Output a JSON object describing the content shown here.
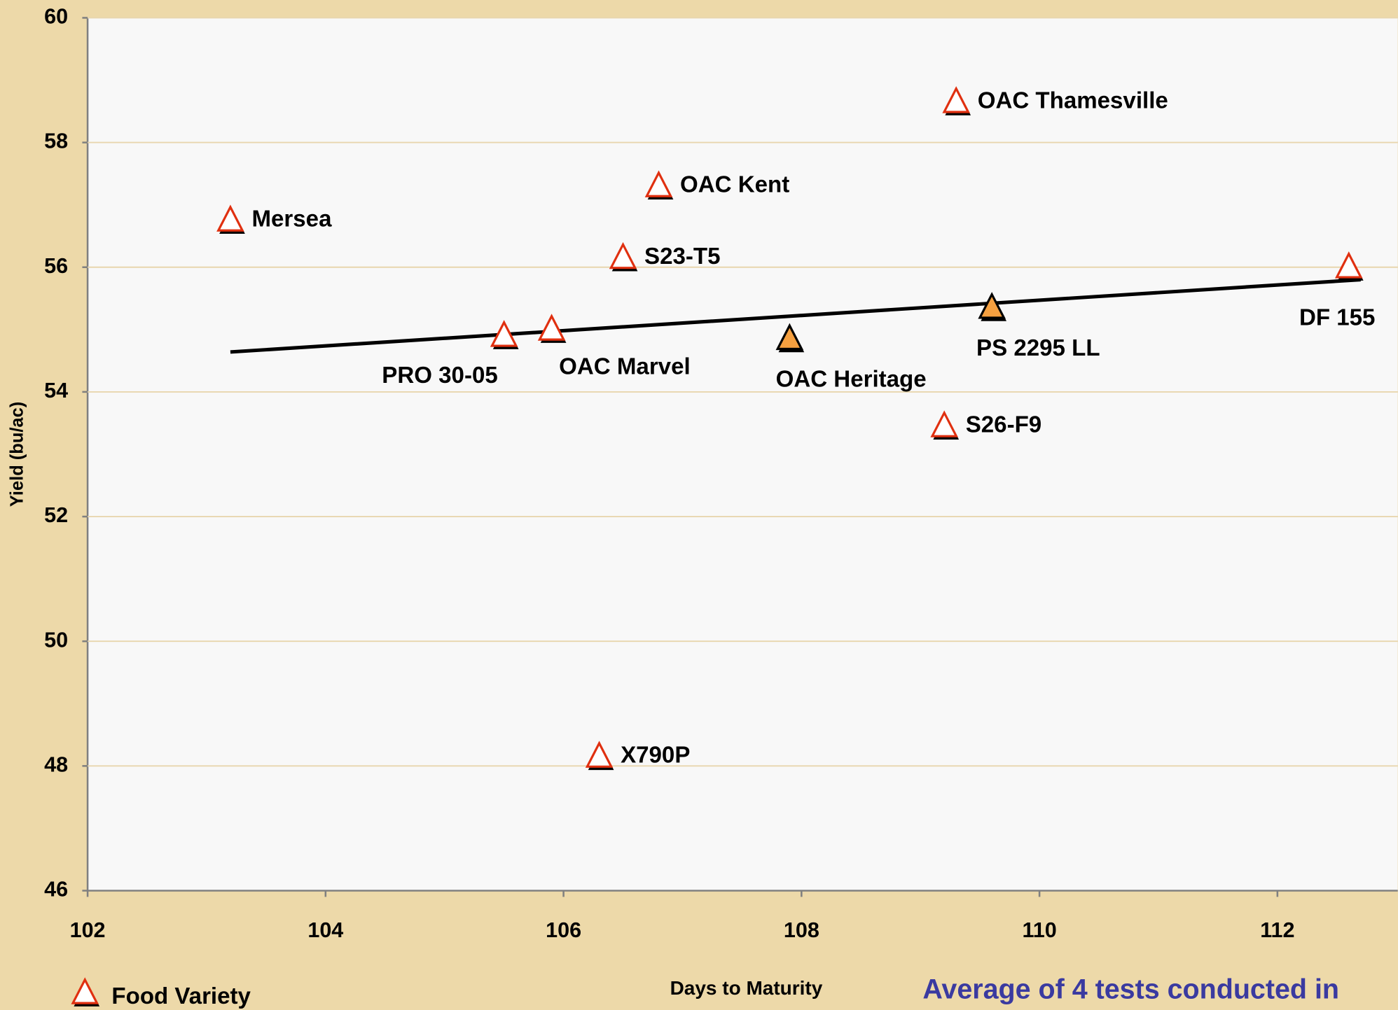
{
  "chart_data": {
    "type": "scatter",
    "x_label": "Days to Maturity",
    "y_label": "Yield (bu/ac)",
    "note": "Average of 4 tests conducted in",
    "xlim": [
      102,
      113
    ],
    "xticks": [
      102,
      104,
      106,
      108,
      110,
      112
    ],
    "ylim": [
      46,
      60
    ],
    "yticks": [
      46,
      48,
      50,
      52,
      54,
      56,
      58,
      60
    ],
    "grid": true,
    "series": [
      {
        "name": "Food Variety",
        "color": "#ffffff",
        "edge_color": "#e03010",
        "labels": [
          "Mersea",
          "PRO 30-05",
          "OAC Marvel",
          "X790P",
          "S23-T5",
          "OAC Kent",
          "S26-F9",
          "OAC Thamesville",
          "DF 155"
        ],
        "x": [
          103.2,
          105.5,
          105.9,
          106.3,
          106.5,
          106.8,
          109.2,
          109.3,
          112.6
        ],
        "values": [
          56.75,
          54.9,
          55.0,
          48.15,
          56.15,
          57.3,
          53.45,
          58.65,
          56.0
        ]
      },
      {
        "color": "#f5a040",
        "edge_color": "#000000",
        "labels": [
          "OAC Heritage",
          "PS 2295 LL"
        ],
        "x": [
          107.9,
          109.6
        ],
        "values": [
          54.85,
          55.35
        ]
      }
    ],
    "trendline": {
      "color": "#000000",
      "x": [
        103.2,
        112.7
      ],
      "values": [
        54.64,
        55.8
      ]
    }
  }
}
